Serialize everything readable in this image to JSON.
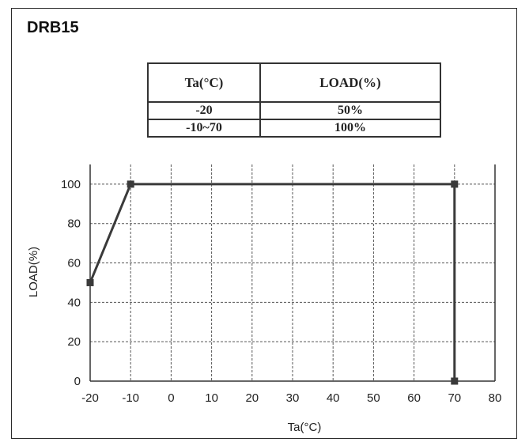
{
  "model": "DRB15",
  "table": {
    "headers": [
      "Ta(°C)",
      "LOAD(%)"
    ],
    "rows": [
      [
        "-20",
        "50%"
      ],
      [
        "-10~70",
        "100%"
      ]
    ]
  },
  "chart_data": {
    "type": "line",
    "title": "",
    "xlabel": "Ta(°C)",
    "ylabel": "LOAD(%)",
    "xlim": [
      -20,
      80
    ],
    "ylim": [
      0,
      110
    ],
    "xticks": [
      -20,
      -10,
      0,
      10,
      20,
      30,
      40,
      50,
      60,
      70,
      80
    ],
    "yticks": [
      0,
      20,
      40,
      60,
      80,
      100
    ],
    "grid": true,
    "series": [
      {
        "x": [
          -20,
          -10,
          70,
          70
        ],
        "y": [
          50,
          100,
          100,
          0
        ]
      }
    ],
    "colors": {
      "line": "#3a3a3a",
      "grid": "#555555",
      "axis": "#333333"
    }
  }
}
